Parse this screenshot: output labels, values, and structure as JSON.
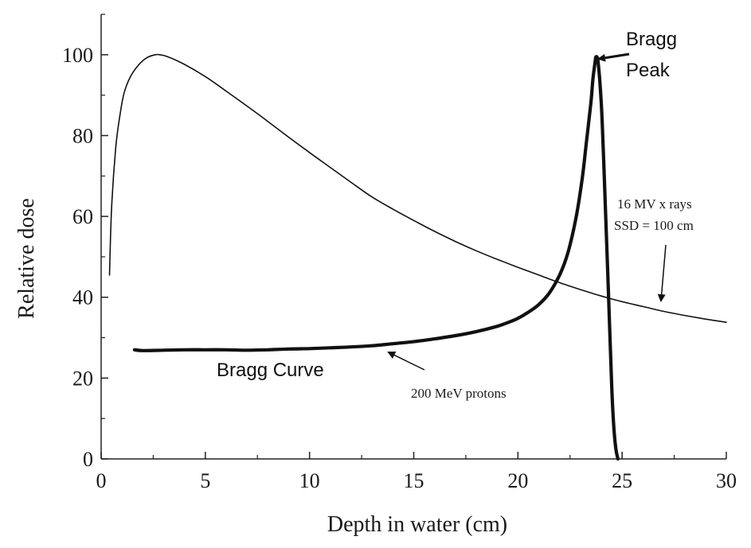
{
  "chart_data": {
    "type": "line",
    "title": "",
    "xlabel": "Depth in water (cm)",
    "ylabel": "Relative dose",
    "xlim": [
      0,
      30
    ],
    "ylim": [
      0,
      110
    ],
    "x_ticks": [
      0,
      5,
      10,
      15,
      20,
      25,
      30
    ],
    "y_ticks": [
      0,
      20,
      40,
      60,
      80,
      100
    ],
    "grid": false,
    "legend": "none",
    "series": [
      {
        "x": [
          0.4,
          0.5,
          0.7,
          0.9,
          1.1,
          1.4,
          1.8,
          2.2,
          2.6,
          2.8,
          3.2,
          4.0,
          5.0,
          6.0,
          7.0,
          8.0,
          9.0,
          10.0,
          11.0,
          12.0,
          13.0,
          14.0,
          15.0,
          16.0,
          17.0,
          18.0,
          19.0,
          20.0,
          21.0,
          22.0,
          23.0,
          24.0,
          25.0,
          26.0,
          27.0,
          28.0,
          29.0,
          30.0
        ],
        "y": [
          45.5,
          62,
          77,
          85,
          90.5,
          94.5,
          97.5,
          99.3,
          100.0,
          100.0,
          99.5,
          97.6,
          94.6,
          91.0,
          87.3,
          83.5,
          79.6,
          75.8,
          72.1,
          68.4,
          64.8,
          61.8,
          59.0,
          56.3,
          53.8,
          51.5,
          49.4,
          47.4,
          45.5,
          43.6,
          41.9,
          40.3,
          38.9,
          37.7,
          36.5,
          35.5,
          34.6,
          33.8
        ]
      },
      {
        "x": [
          1.6,
          2.0,
          3.0,
          4.0,
          5.0,
          6.0,
          7.0,
          8.0,
          9.0,
          10.0,
          11.0,
          12.0,
          13.0,
          14.0,
          15.0,
          16.0,
          17.0,
          18.0,
          19.0,
          19.5,
          20.0,
          20.5,
          21.0,
          21.5,
          22.0,
          22.4,
          22.8,
          23.1,
          23.3,
          23.5,
          23.6,
          23.7,
          23.75,
          23.85,
          24.0,
          24.1,
          24.2,
          24.35,
          24.5,
          24.6,
          24.7,
          24.8
        ],
        "y": [
          27.0,
          26.8,
          26.9,
          27.0,
          27.0,
          27.0,
          26.9,
          27.0,
          27.2,
          27.3,
          27.5,
          27.7,
          28.0,
          28.5,
          29.0,
          29.7,
          30.5,
          31.5,
          32.8,
          33.7,
          34.8,
          36.3,
          38.2,
          41.0,
          45.5,
          51.0,
          60.0,
          70.0,
          79.0,
          88.0,
          94.0,
          98.0,
          99.5,
          98.0,
          88.0,
          76.0,
          62.0,
          40.0,
          18.0,
          8.0,
          2.5,
          0.0
        ]
      }
    ],
    "annotations": {
      "peak_line1": "Bragg",
      "peak_line2": "Peak",
      "xray_line1": "16 MV x rays",
      "xray_line2": "SSD = 100 cm",
      "curve_label": "Bragg Curve",
      "proton_label": "200 MeV protons"
    }
  }
}
